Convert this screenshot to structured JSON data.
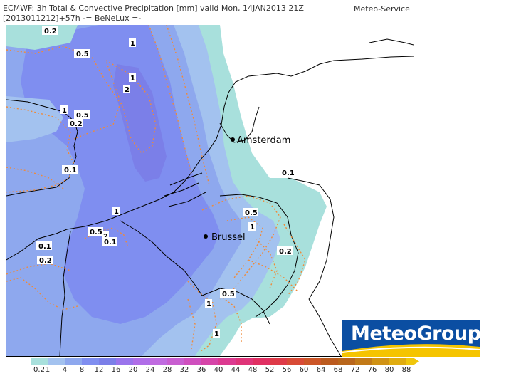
{
  "header": {
    "line1": "ECMWF: 3h Total & Convective Precipitation [mm] valid Mon, 14JAN2013 21Z",
    "line2": "[2013011212]+57h  -= BeNeLux =-",
    "brand": "Meteo-Service"
  },
  "map": {
    "cities": [
      {
        "name": "Amsterdam"
      },
      {
        "name": "Brussel"
      }
    ],
    "contour_labels": [
      "0.2",
      "0.5",
      "1",
      "1",
      "2",
      "1",
      "0.5",
      "0.2",
      "0.1",
      "0.1",
      "1",
      "0.5",
      "1",
      "0.5",
      "2",
      "0.1",
      "0.1",
      "0.2",
      "0.2",
      "0.5",
      "1",
      "1"
    ],
    "colors": {
      "sea_light": "#a8e0dc",
      "precip_low": "#8ea8ee",
      "precip_mid": "#7f8ef0",
      "precip_high": "#7b7fe8",
      "convective": "#ef8a3a",
      "borders": "#000000"
    }
  },
  "logo": {
    "text": "MeteoGroup",
    "colors": {
      "blue": "#0b4ea2",
      "yellow": "#f5c400"
    }
  },
  "legend": {
    "labels": [
      "0.2",
      "1",
      "4",
      "8",
      "12",
      "16",
      "20",
      "24",
      "28",
      "32",
      "36",
      "40",
      "44",
      "48",
      "52",
      "56",
      "60",
      "64",
      "68",
      "72",
      "76",
      "80",
      "88"
    ],
    "colors": [
      "#a8e0dc",
      "#a3c2ef",
      "#8ea8ee",
      "#7f8ef0",
      "#7b7fe8",
      "#9a74ec",
      "#b06ee8",
      "#c06be0",
      "#c85ed0",
      "#cf4fbe",
      "#d644a8",
      "#dc3a90",
      "#df3478",
      "#e02f62",
      "#de3a48",
      "#d84a36",
      "#cc5628",
      "#bb5a1e",
      "#b8661c",
      "#c27a18",
      "#d09214",
      "#e0ac10",
      "#f0c60c"
    ]
  }
}
